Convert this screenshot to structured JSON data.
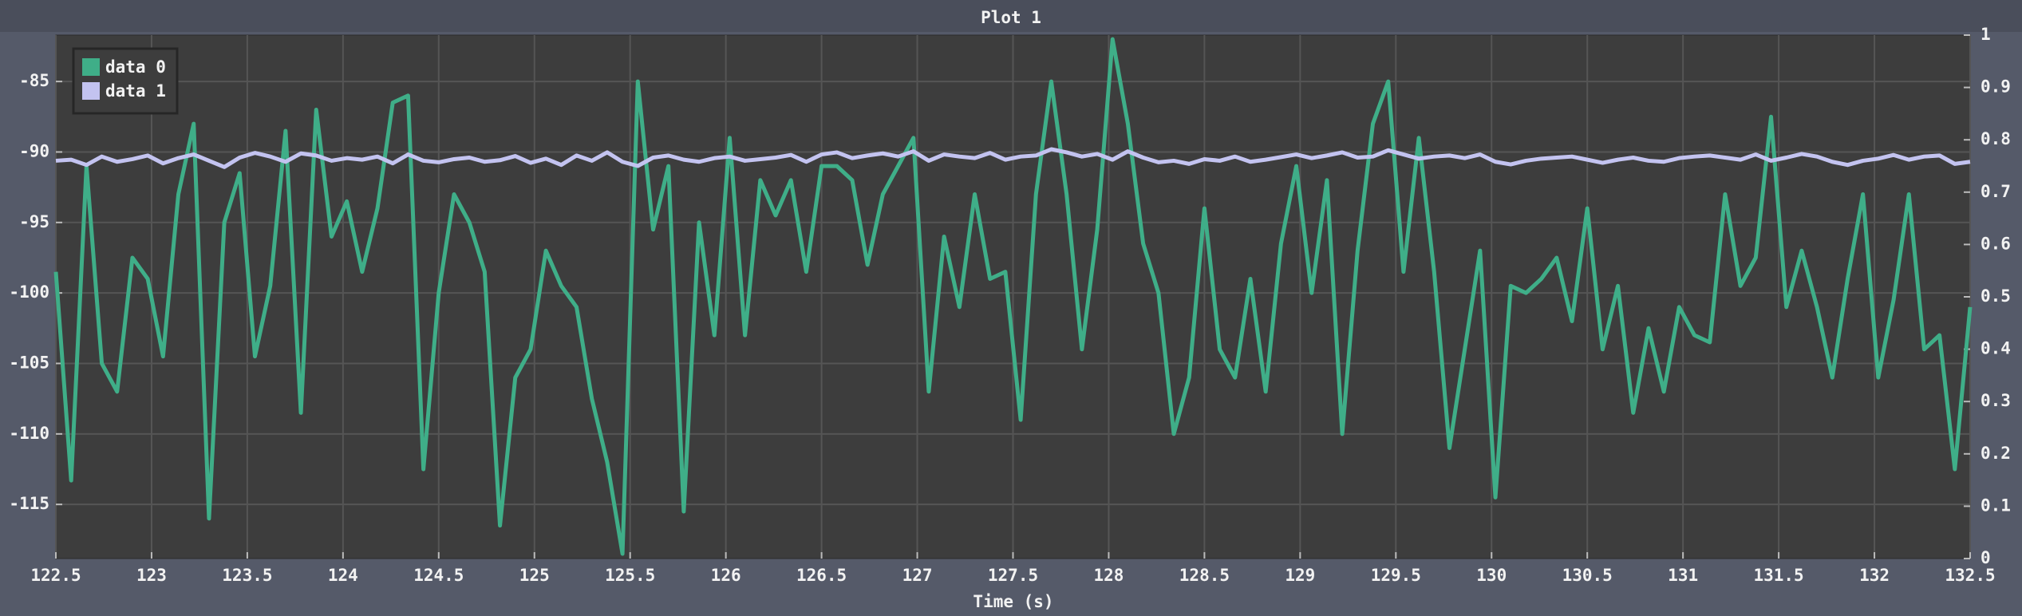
{
  "chart_data": {
    "type": "line",
    "title": "Plot 1",
    "xlabel": "Time (s)",
    "x": [
      122.5,
      122.58,
      122.66,
      122.74,
      122.82,
      122.9,
      122.98,
      123.06,
      123.14,
      123.22,
      123.3,
      123.38,
      123.46,
      123.54,
      123.62,
      123.7,
      123.78,
      123.86,
      123.94,
      124.02,
      124.1,
      124.18,
      124.26,
      124.34,
      124.42,
      124.5,
      124.58,
      124.66,
      124.74,
      124.82,
      124.9,
      124.98,
      125.06,
      125.14,
      125.22,
      125.3,
      125.38,
      125.46,
      125.54,
      125.62,
      125.7,
      125.78,
      125.86,
      125.94,
      126.02,
      126.1,
      126.18,
      126.26,
      126.34,
      126.42,
      126.5,
      126.58,
      126.66,
      126.74,
      126.82,
      126.9,
      126.98,
      127.06,
      127.14,
      127.22,
      127.3,
      127.38,
      127.46,
      127.54,
      127.62,
      127.7,
      127.78,
      127.86,
      127.94,
      128.02,
      128.1,
      128.18,
      128.26,
      128.34,
      128.42,
      128.5,
      128.58,
      128.66,
      128.74,
      128.82,
      128.9,
      128.98,
      129.06,
      129.14,
      129.22,
      129.3,
      129.38,
      129.46,
      129.54,
      129.62,
      129.7,
      129.78,
      129.86,
      129.94,
      130.02,
      130.1,
      130.18,
      130.26,
      130.34,
      130.42,
      130.5,
      130.58,
      130.66,
      130.74,
      130.82,
      130.9,
      130.98,
      131.06,
      131.14,
      131.22,
      131.3,
      131.38,
      131.46,
      131.54,
      131.62,
      131.7,
      131.78,
      131.86,
      131.94,
      132.02,
      132.1,
      132.18,
      132.26,
      132.34,
      132.42,
      132.5
    ],
    "series": [
      {
        "name": "data 0",
        "color": "#3fae88",
        "axis": "y",
        "values": [
          -98.5,
          -113.3,
          -91,
          -105,
          -107,
          -97.5,
          -99,
          -104.5,
          -93,
          -88,
          -116,
          -95,
          -91.5,
          -104.5,
          -99.5,
          -88.5,
          -108.5,
          -87,
          -96,
          -93.5,
          -98.5,
          -94,
          -86.5,
          -86,
          -112.5,
          -100,
          -93,
          -95,
          -98.5,
          -116.5,
          -106,
          -104,
          -97,
          -99.5,
          -101,
          -107.5,
          -112,
          -118.5,
          -85,
          -95.5,
          -91,
          -115.5,
          -95,
          -103,
          -89,
          -103,
          -92,
          -94.5,
          -92,
          -98.5,
          -91,
          -91,
          -92,
          -98,
          -93,
          -91,
          -89,
          -107,
          -96,
          -101,
          -93,
          -99,
          -98.5,
          -109,
          -93,
          -85,
          -93,
          -104,
          -95.5,
          -82,
          -88,
          -96.5,
          -100,
          -110,
          -106,
          -94,
          -104,
          -106,
          -99,
          -107,
          -96.5,
          -91,
          -100,
          -92,
          -110,
          -97,
          -88,
          -85,
          -98.5,
          -89,
          -98.5,
          -111,
          -104,
          -97,
          -114.5,
          -99.5,
          -100,
          -99,
          -97.5,
          -102,
          -94,
          -104,
          -99.5,
          -108.5,
          -102.5,
          -107,
          -101,
          -103,
          -103.5,
          -93,
          -99.5,
          -97.5,
          -87.5,
          -101,
          -97,
          -101,
          -106,
          -99,
          -93,
          -106,
          -100.5,
          -93,
          -104,
          -103,
          -112.5,
          -101
        ]
      },
      {
        "name": "data 1",
        "color": "#c3c3f0",
        "axis": "y2",
        "values": [
          0.76,
          0.762,
          0.752,
          0.768,
          0.758,
          0.763,
          0.77,
          0.755,
          0.765,
          0.772,
          0.76,
          0.748,
          0.766,
          0.775,
          0.768,
          0.758,
          0.774,
          0.77,
          0.76,
          0.765,
          0.762,
          0.768,
          0.755,
          0.772,
          0.76,
          0.757,
          0.763,
          0.766,
          0.758,
          0.761,
          0.769,
          0.756,
          0.764,
          0.752,
          0.77,
          0.76,
          0.776,
          0.758,
          0.75,
          0.766,
          0.77,
          0.762,
          0.758,
          0.765,
          0.768,
          0.76,
          0.763,
          0.766,
          0.771,
          0.758,
          0.772,
          0.776,
          0.765,
          0.77,
          0.774,
          0.768,
          0.778,
          0.76,
          0.772,
          0.768,
          0.765,
          0.775,
          0.762,
          0.768,
          0.77,
          0.782,
          0.776,
          0.768,
          0.773,
          0.762,
          0.778,
          0.766,
          0.757,
          0.76,
          0.754,
          0.763,
          0.76,
          0.768,
          0.758,
          0.762,
          0.767,
          0.772,
          0.765,
          0.77,
          0.776,
          0.766,
          0.768,
          0.78,
          0.772,
          0.764,
          0.768,
          0.77,
          0.765,
          0.772,
          0.758,
          0.753,
          0.76,
          0.764,
          0.766,
          0.768,
          0.762,
          0.756,
          0.762,
          0.766,
          0.76,
          0.758,
          0.765,
          0.768,
          0.77,
          0.766,
          0.762,
          0.772,
          0.76,
          0.766,
          0.773,
          0.768,
          0.758,
          0.752,
          0.76,
          0.764,
          0.771,
          0.762,
          0.768,
          0.77,
          0.754,
          0.758
        ]
      }
    ],
    "xlim": [
      122.5,
      132.5
    ],
    "xticks": [
      122.5,
      123,
      123.5,
      124,
      124.5,
      125,
      125.5,
      126,
      126.5,
      127,
      127.5,
      128,
      128.5,
      129,
      129.5,
      130,
      130.5,
      131,
      131.5,
      132,
      132.5
    ],
    "ylim": [
      -118.84,
      -81.71
    ],
    "yticks": [
      -115,
      -110,
      -105,
      -100,
      -95,
      -90,
      -85
    ],
    "y2lim": [
      0,
      1
    ],
    "y2ticks": [
      0,
      0.1,
      0.2,
      0.3,
      0.4,
      0.5,
      0.6,
      0.7,
      0.8,
      0.9,
      1
    ],
    "grid": true,
    "legend": "upper left"
  }
}
